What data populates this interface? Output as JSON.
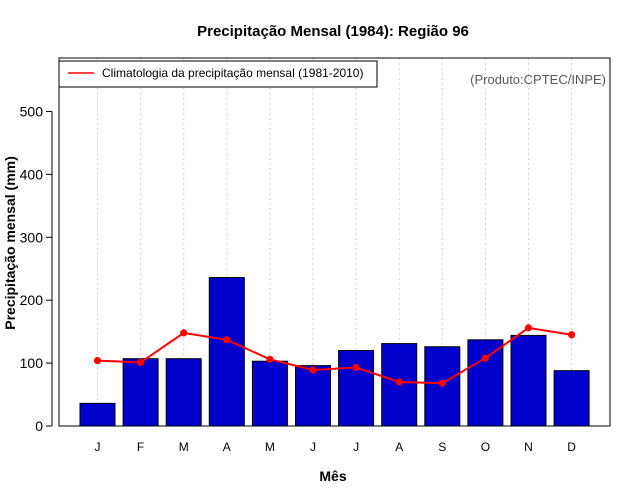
{
  "chart_data": {
    "type": "bar",
    "title": "Precipitação Mensal (1984): Região 96",
    "xlabel": "Mês",
    "ylabel": "Precipitação mensal (mm)",
    "ylim": [
      0,
      585
    ],
    "yticks": [
      0,
      100,
      200,
      300,
      400,
      500
    ],
    "categories": [
      "J",
      "F",
      "M",
      "A",
      "M",
      "J",
      "J",
      "A",
      "S",
      "O",
      "N",
      "D"
    ],
    "series": [
      {
        "name": "Precipitação mensal (1984)",
        "type": "bar",
        "color": "#0000cd",
        "values": [
          36,
          107,
          107,
          236,
          103,
          96,
          120,
          131,
          126,
          137,
          144,
          88
        ]
      },
      {
        "name": "Climatologia da precipitação mensal (1981-2010)",
        "type": "line",
        "color": "#ff0000",
        "values": [
          104,
          101,
          148,
          137,
          106,
          89,
          93,
          70,
          68,
          108,
          156,
          145
        ]
      }
    ],
    "legend": {
      "position": "top-left",
      "entries": [
        "Climatologia da precipitação mensal (1981-2010)"
      ]
    },
    "annotation": "(Produto:CPTEC/INPE)",
    "grid": "vertical-dotted"
  }
}
